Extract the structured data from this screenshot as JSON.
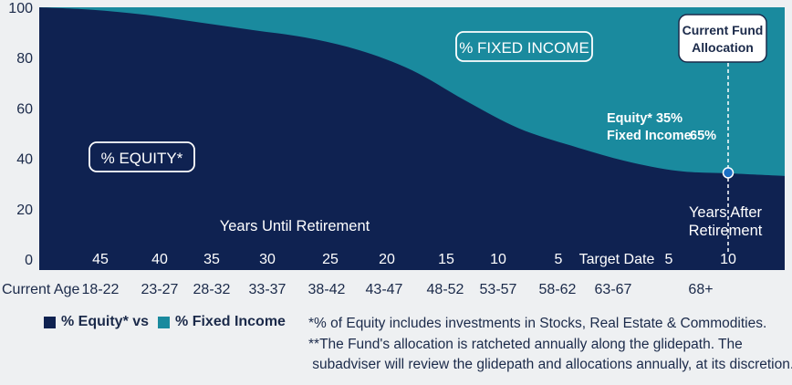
{
  "chart_data": {
    "type": "area",
    "title": "",
    "x_top_labels": [
      "45",
      "40",
      "35",
      "30",
      "25",
      "20",
      "15",
      "10",
      "5",
      "Target Date",
      "5",
      "10"
    ],
    "x_bottom_axis_label": "Current Age",
    "x_bottom_labels": [
      "18-22",
      "23-27",
      "28-32",
      "33-37",
      "38-42",
      "43-47",
      "48-52",
      "53-57",
      "58-62",
      "63-67",
      "68+"
    ],
    "xlabel_left": "Years Until Retirement",
    "xlabel_right": "Years After Retirement",
    "ylim": [
      0,
      100
    ],
    "yticks": [
      "0",
      "20",
      "40",
      "60",
      "80",
      "100"
    ],
    "x": [
      0,
      1,
      2,
      3,
      4,
      5,
      6,
      7,
      8,
      9,
      10,
      11,
      12,
      13,
      14
    ],
    "series": [
      {
        "name": "% Equity* vs",
        "color": "#0f2251",
        "values": [
          100,
          99,
          97,
          94,
          91,
          88,
          83,
          75,
          63,
          52,
          45,
          39,
          35,
          34,
          33
        ]
      },
      {
        "name": "% Fixed Income",
        "color": "#1a8a9e",
        "values": [
          0,
          1,
          3,
          6,
          9,
          12,
          17,
          25,
          37,
          48,
          55,
          61,
          65,
          66,
          67
        ]
      }
    ],
    "annotations": {
      "equity_box": "% EQUITY*",
      "fixed_box": "% FIXED INCOME",
      "current_label_line1": "Current Fund",
      "current_label_line2": "Allocation",
      "current_equity_label": "Equity* 35%",
      "current_fixed_label": "Fixed Income",
      "current_fixed_value": "65%"
    },
    "grid": false
  },
  "legend": {
    "equity_label": "% Equity* vs",
    "fixed_label": "% Fixed Income",
    "equity_color": "#0f2251",
    "fixed_color": "#1a8a9e"
  },
  "footnotes": {
    "line1": "*% of Equity includes investments in Stocks, Real Estate & Commodities.",
    "line2": "**The Fund's allocation is ratcheted annually along the glidepath. The",
    "line3": " subadviser will review the glidepath and allocations annually, at its discretion."
  }
}
